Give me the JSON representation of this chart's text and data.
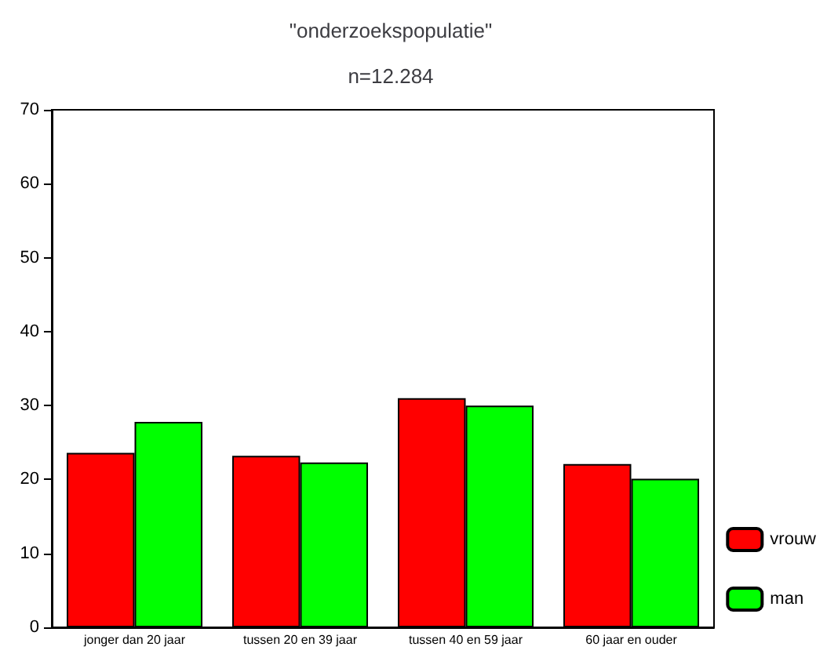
{
  "chart_data": {
    "type": "bar",
    "title": "\"onderzoekspopulatie\"",
    "subtitle": "n=12.284",
    "categories": [
      "jonger dan 20 jaar",
      "tussen 20 en 39 jaar",
      "tussen 40 en 59 jaar",
      "60 jaar en ouder"
    ],
    "series": [
      {
        "name": "vrouw",
        "color": "#ff0000",
        "values": [
          23.6,
          23.2,
          31.0,
          22.1
        ]
      },
      {
        "name": "man",
        "color": "#00ff00",
        "values": [
          27.8,
          22.3,
          30.0,
          20.1
        ]
      }
    ],
    "ylim": [
      0,
      70
    ],
    "yticks": [
      0,
      10,
      20,
      30,
      40,
      50,
      60,
      70
    ],
    "grid": false,
    "legend": "bottom right"
  }
}
